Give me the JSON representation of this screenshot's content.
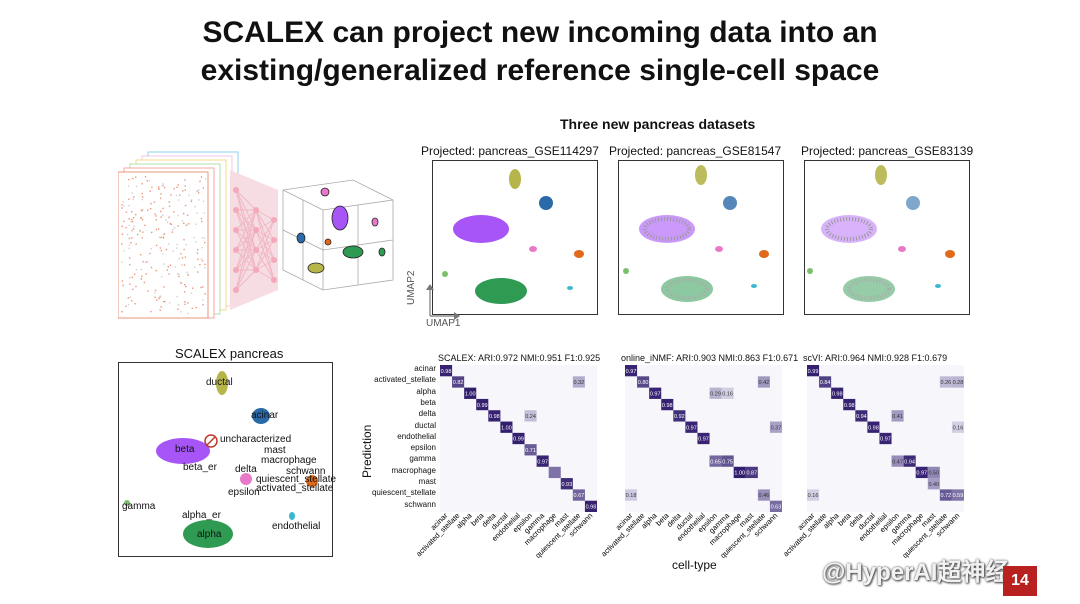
{
  "slide": {
    "title_line1": "SCALEX can project new incoming data into an",
    "title_line2": "existing/generalized reference single-cell space",
    "page_number": "14",
    "watermark": "@HyperAI超神经"
  },
  "top_section": {
    "heading": "Three new pancreas datasets",
    "panels": [
      {
        "title": "Projected: pancreas_GSE114297"
      },
      {
        "title": "Projected: pancreas_GSE81547"
      },
      {
        "title": "Projected: pancreas_GSE83139"
      }
    ],
    "axis_x": "UMAP1",
    "axis_y": "UMAP2"
  },
  "reference_panel": {
    "title": "SCALEX pancreas",
    "labels": {
      "ductal": "ductal",
      "acinar": "acinar",
      "uncharacterized": "uncharacterized",
      "mast": "mast",
      "macrophage": "macrophage",
      "beta": "beta",
      "beta_er": "beta_er",
      "delta": "delta",
      "schwann": "schwann",
      "quiescent_stellate": "quiescent_stellate",
      "activated_stellate": "activated_stellate",
      "epsilon": "epsilon",
      "gamma": "gamma",
      "alpha_er": "alpha_er",
      "alpha": "alpha",
      "endothelial": "endothelial"
    },
    "colors": {
      "ductal": "#b5b54a",
      "acinar": "#2a6aa8",
      "beta": "#a855f7",
      "alpha": "#2e9a52",
      "delta": "#e879c8",
      "schwann": "#e06a1a",
      "endothelial": "#3ab8d0",
      "gamma": "#7ac06a",
      "uncharacterized": "#c0392b"
    }
  },
  "confusion": {
    "row_labels": [
      "acinar",
      "activated_stellate",
      "alpha",
      "beta",
      "delta",
      "ductal",
      "endothelial",
      "epsilon",
      "gamma",
      "macrophage",
      "mast",
      "quiescent_stellate",
      "schwann"
    ],
    "col_labels": [
      "acinar",
      "activated_stellate",
      "alpha",
      "beta",
      "delta",
      "ductal",
      "endothelial",
      "epsilon",
      "gamma",
      "macrophage",
      "mast",
      "quiescent_stellate",
      "schwann"
    ],
    "y_axis_label": "Prediction",
    "x_axis_label": "cell-type",
    "matrices": [
      {
        "title": "SCALEX:  ARI:0.972   NMI:0.951   F1:0.925",
        "cells": [
          {
            "r": 0,
            "c": 0,
            "v": "0.98"
          },
          {
            "r": 1,
            "c": 1,
            "v": "0.82"
          },
          {
            "r": 1,
            "c": 11,
            "v": "0.32"
          },
          {
            "r": 2,
            "c": 2,
            "v": "1.00"
          },
          {
            "r": 3,
            "c": 3,
            "v": "0.99"
          },
          {
            "r": 4,
            "c": 4,
            "v": "0.98"
          },
          {
            "r": 4,
            "c": 7,
            "v": "0.24"
          },
          {
            "r": 5,
            "c": 5,
            "v": "1.00"
          },
          {
            "r": 6,
            "c": 6,
            "v": "0.99"
          },
          {
            "r": 7,
            "c": 7,
            "v": "0.71"
          },
          {
            "r": 8,
            "c": 8,
            "v": "0.97"
          },
          {
            "r": 9,
            "c": 9,
            "v": ""
          },
          {
            "r": 10,
            "c": 10,
            "v": "0.93"
          },
          {
            "r": 11,
            "c": 11,
            "v": "0.67"
          },
          {
            "r": 12,
            "c": 12,
            "v": "0.98"
          }
        ]
      },
      {
        "title": "online_iNMF:  ARI:0.903   NMI:0.863   F1:0.671",
        "cells": [
          {
            "r": 0,
            "c": 0,
            "v": "0.97"
          },
          {
            "r": 1,
            "c": 1,
            "v": "0.80"
          },
          {
            "r": 1,
            "c": 11,
            "v": "0.42"
          },
          {
            "r": 2,
            "c": 2,
            "v": "0.97"
          },
          {
            "r": 2,
            "c": 7,
            "v": "0.29"
          },
          {
            "r": 2,
            "c": 8,
            "v": "0.16"
          },
          {
            "r": 3,
            "c": 3,
            "v": "0.98"
          },
          {
            "r": 4,
            "c": 4,
            "v": "0.92"
          },
          {
            "r": 5,
            "c": 5,
            "v": "0.97"
          },
          {
            "r": 5,
            "c": 12,
            "v": "0.37"
          },
          {
            "r": 6,
            "c": 6,
            "v": "0.97"
          },
          {
            "r": 8,
            "c": 7,
            "v": "0.65"
          },
          {
            "r": 8,
            "c": 8,
            "v": "0.75"
          },
          {
            "r": 9,
            "c": 9,
            "v": "1.00"
          },
          {
            "r": 9,
            "c": 10,
            "v": "0.87"
          },
          {
            "r": 11,
            "c": 0,
            "v": "0.18"
          },
          {
            "r": 11,
            "c": 11,
            "v": "0.46"
          },
          {
            "r": 12,
            "c": 12,
            "v": "0.63"
          }
        ]
      },
      {
        "title": "scVI:  ARI:0.964   NMI:0.928   F1:0.679",
        "cells": [
          {
            "r": 0,
            "c": 0,
            "v": "0.99"
          },
          {
            "r": 1,
            "c": 1,
            "v": "0.84"
          },
          {
            "r": 1,
            "c": 11,
            "v": "0.26"
          },
          {
            "r": 1,
            "c": 12,
            "v": "0.28"
          },
          {
            "r": 2,
            "c": 2,
            "v": "0.98"
          },
          {
            "r": 3,
            "c": 3,
            "v": "0.98"
          },
          {
            "r": 4,
            "c": 4,
            "v": "0.94"
          },
          {
            "r": 4,
            "c": 7,
            "v": "0.41"
          },
          {
            "r": 5,
            "c": 5,
            "v": "0.98"
          },
          {
            "r": 5,
            "c": 12,
            "v": "0.16"
          },
          {
            "r": 6,
            "c": 6,
            "v": "0.97"
          },
          {
            "r": 8,
            "c": 7,
            "v": "0.47"
          },
          {
            "r": 8,
            "c": 8,
            "v": "0.94"
          },
          {
            "r": 9,
            "c": 9,
            "v": "0.97"
          },
          {
            "r": 9,
            "c": 10,
            "v": "0.50"
          },
          {
            "r": 10,
            "c": 10,
            "v": "0.40"
          },
          {
            "r": 11,
            "c": 0,
            "v": "0.16"
          },
          {
            "r": 11,
            "c": 11,
            "v": "0.72"
          },
          {
            "r": 11,
            "c": 12,
            "v": "0.59"
          }
        ]
      }
    ]
  }
}
